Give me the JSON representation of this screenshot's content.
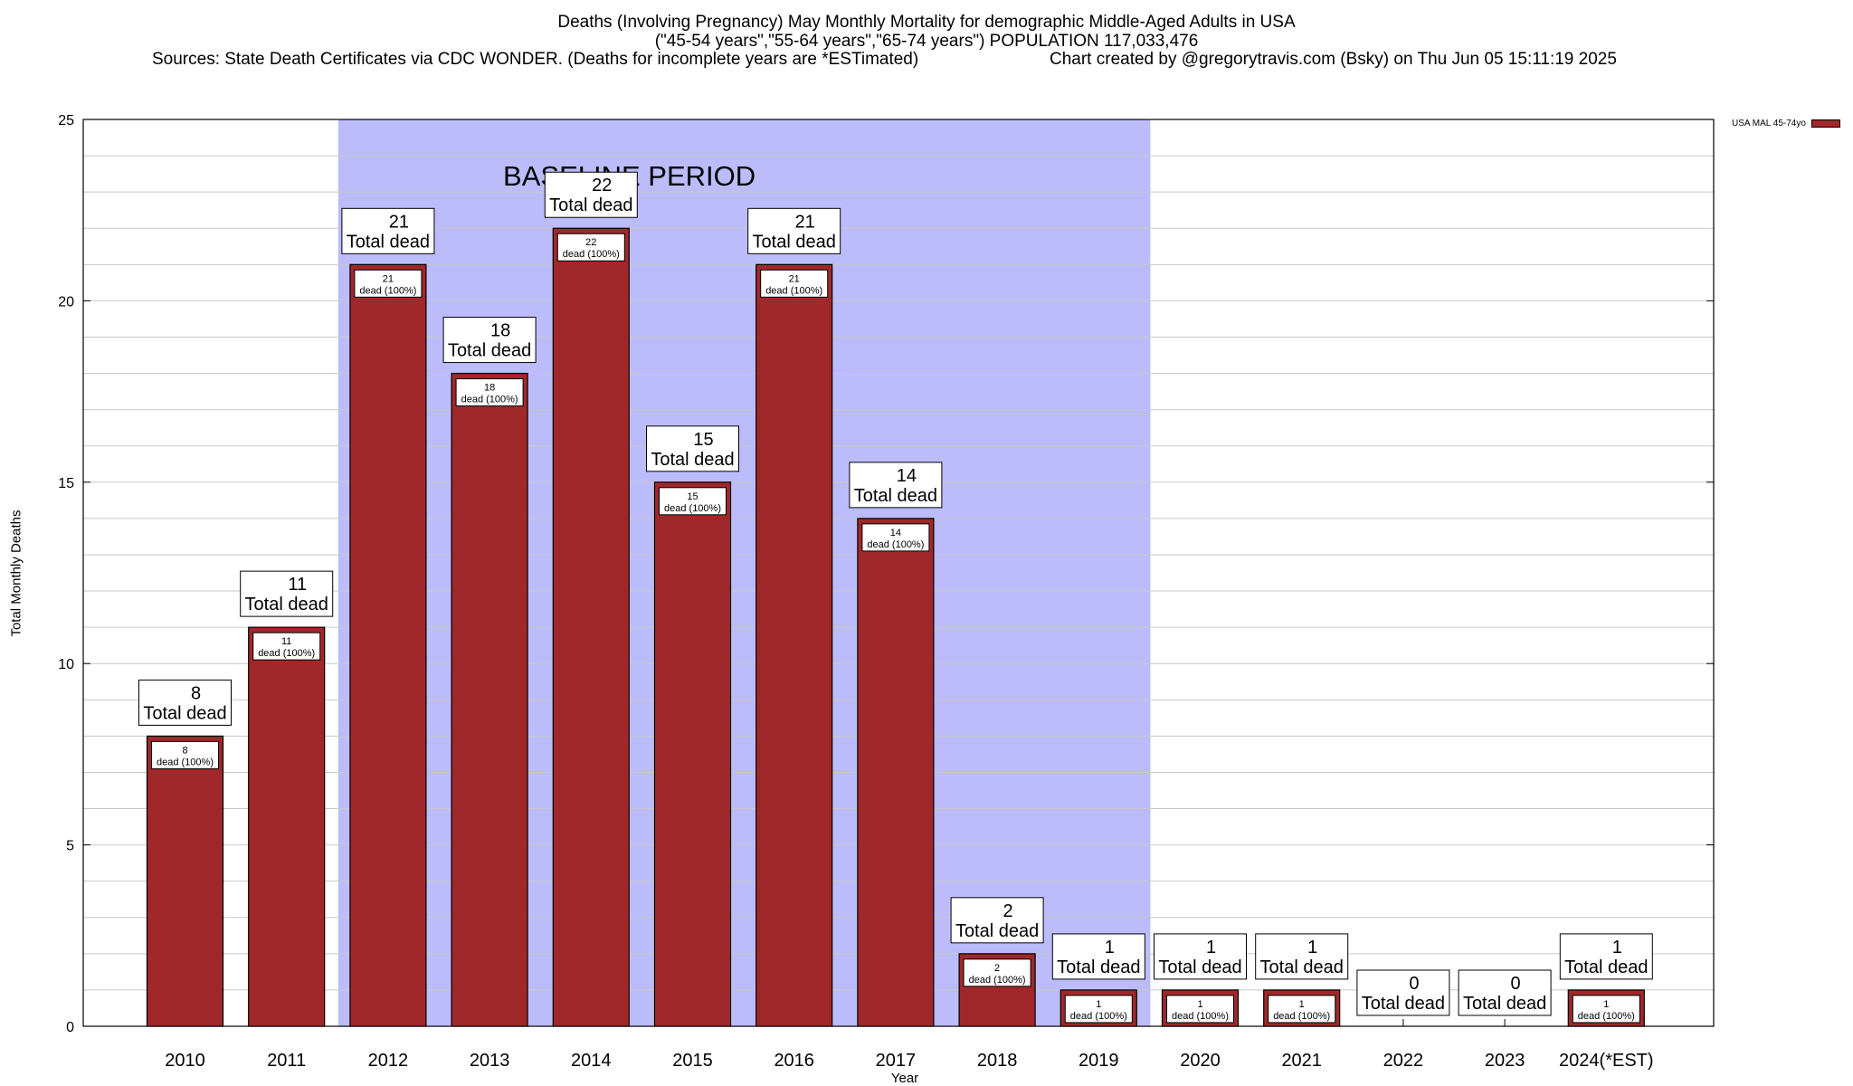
{
  "header": {
    "title": "Deaths (Involving Pregnancy) May Monthly Mortality for demographic Middle-Aged Adults in USA",
    "subtitle": "(\"45-54 years\",\"55-64 years\",\"65-74 years\") POPULATION 117,033,476",
    "sources": "Sources: State Death Certificates via CDC WONDER. (Deaths for incomplete years are *ESTimated)",
    "credit": "Chart created by @gregorytravis.com (Bsky) on Thu Jun 05 15:11:19 2025"
  },
  "chart_data": {
    "type": "bar",
    "categories": [
      "2010",
      "2011",
      "2012",
      "2013",
      "2014",
      "2015",
      "2016",
      "2017",
      "2018",
      "2019",
      "2020",
      "2021",
      "2022",
      "2023",
      "2024(*EST)"
    ],
    "series": [
      {
        "name": "USA MAL 45-74yo",
        "values": [
          8,
          11,
          21,
          18,
          22,
          15,
          21,
          14,
          2,
          1,
          1,
          1,
          0,
          0,
          1
        ]
      }
    ],
    "inner_labels": [
      "8\ndead (100%)",
      "11\ndead (100%)",
      "21\ndead (100%)",
      "18\ndead (100%)",
      "22\ndead (100%)",
      "15\ndead (100%)",
      "21\ndead (100%)",
      "14\ndead (100%)",
      "2\ndead (100%)",
      "1\ndead (100%)",
      "1\ndead (100%)",
      "1\ndead (100%)",
      "",
      "",
      "1\ndead (100%)"
    ],
    "total_label_suffix": "Total dead",
    "xlabel": "Year",
    "ylabel": "Total Monthly Deaths",
    "ylim": [
      0,
      25
    ],
    "yticks": [
      0,
      5,
      10,
      15,
      20,
      25
    ],
    "grid": true,
    "baseline": {
      "label": "BASELINE PERIOD",
      "from": "2012",
      "to": "2019",
      "color": "#bcbcfa"
    },
    "legend_position": "top-right",
    "bar_color": "#a0282a"
  }
}
